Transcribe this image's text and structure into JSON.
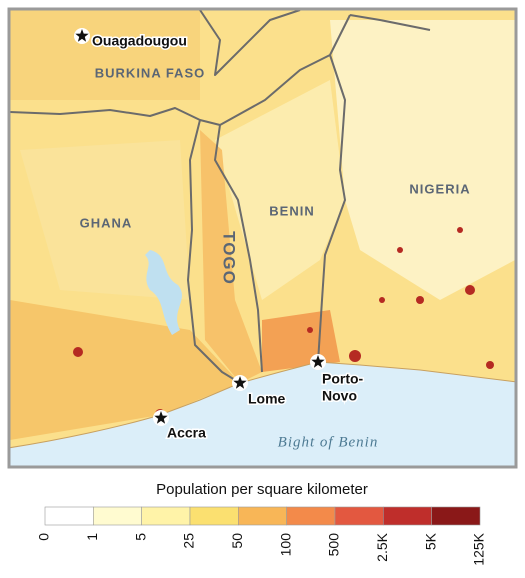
{
  "cities": [
    {
      "lines": [
        "Ouagadougou"
      ]
    },
    {
      "lines": [
        "Accra"
      ]
    },
    {
      "lines": [
        "Lome"
      ]
    },
    {
      "lines": [
        "Porto-",
        "Novo"
      ]
    }
  ],
  "countries": [
    "BURKINA FASO",
    "GHANA",
    "TOGO",
    "BENIN",
    "NIGERIA"
  ],
  "water": "Bight of Benin",
  "legend": {
    "title": "Population per square kilometer",
    "ticks": [
      "0",
      "1",
      "5",
      "25",
      "50",
      "100",
      "500",
      "2.5K",
      "5K",
      "125K"
    ],
    "colors": [
      "#ffffff",
      "#fffbd0",
      "#fff3a8",
      "#fbe070",
      "#f8b657",
      "#f38a4a",
      "#e35840",
      "#bf2e2b",
      "#8a1818"
    ]
  }
}
